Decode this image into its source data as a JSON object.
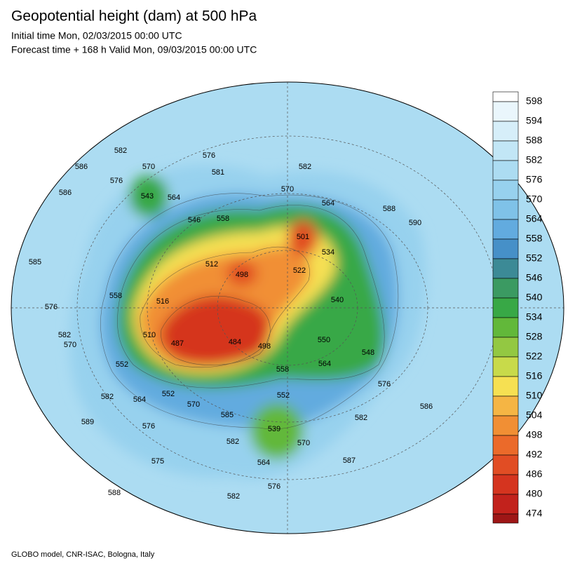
{
  "header": {
    "title": "Geopotential height (dam) at 500 hPa",
    "lines": [
      "Initial time Mon, 02/03/2015 00:00 UTC",
      "Forecast time + 168 h Valid Mon, 09/03/2015 00:00 UTC"
    ]
  },
  "colorbar": {
    "labels": [
      598,
      594,
      588,
      582,
      576,
      570,
      564,
      558,
      552,
      546,
      540,
      534,
      528,
      522,
      516,
      510,
      504,
      498,
      492,
      486,
      480,
      474
    ],
    "colors": [
      "#ffffff",
      "#eaf6fc",
      "#d6eef9",
      "#c2e6f6",
      "#acdcf2",
      "#97d1ee",
      "#7fc2e8",
      "#62abdf",
      "#4690c8",
      "#3c8a96",
      "#3b9a62",
      "#38a846",
      "#62b83a",
      "#93c842",
      "#c8da4a",
      "#f6e052",
      "#f5b544",
      "#f18f34",
      "#eb6a2a",
      "#e14d24",
      "#d5341f",
      "#c2221c",
      "#9e1616"
    ]
  },
  "map": {
    "labels": [
      586,
      586,
      570,
      576,
      543,
      564,
      582,
      576,
      581,
      582,
      570,
      564,
      588,
      590,
      546,
      558,
      501,
      534,
      512,
      498,
      522,
      585,
      558,
      576,
      516,
      540,
      510,
      487,
      484,
      498,
      550,
      548,
      570,
      582,
      552,
      564,
      558,
      552,
      564,
      570,
      552,
      576,
      582,
      586,
      582,
      585,
      589,
      576,
      539,
      582,
      570,
      575,
      564,
      587,
      576,
      582,
      588
    ]
  },
  "footer": "GLOBO model, CNR-ISAC, Bologna, Italy"
}
